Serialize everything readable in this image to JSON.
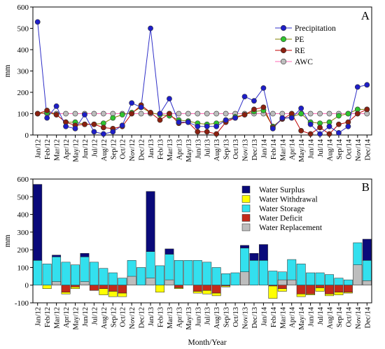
{
  "months": [
    "Jan/12",
    "Feb/12",
    "Mar/12",
    "Apr/12",
    "May/12",
    "Jun/12",
    "Jul/12",
    "Aug/12",
    "Sep/12",
    "Oct/12",
    "Nov/12",
    "Dec/12",
    "Jan/13",
    "Feb/13",
    "Mar/13",
    "Apr/13",
    "May/13",
    "Jun/13",
    "Jul/13",
    "Aug/13",
    "Sep/13",
    "Oct/13",
    "Nov/13",
    "Dec/13",
    "Jan/14",
    "Feb/14",
    "Mar/14",
    "Apr/14",
    "May/14",
    "Jun/14",
    "Jul/14",
    "Aug/14",
    "Sep/14",
    "Oct/14",
    "Nov/14",
    "Dec/14"
  ],
  "xlabel": "Month/Year",
  "chart_data": [
    {
      "type": "line",
      "panel": "A",
      "ylabel": "mm",
      "ylim": [
        0,
        600
      ],
      "yticks": [
        0,
        100,
        200,
        300,
        400,
        500,
        600
      ],
      "legend_position": "top-right",
      "series": [
        {
          "name": "Precipitation",
          "color": "#1e1ec8",
          "line": "#3030c8",
          "values": [
            530,
            80,
            135,
            40,
            30,
            95,
            15,
            5,
            15,
            45,
            150,
            130,
            500,
            100,
            170,
            60,
            60,
            40,
            40,
            40,
            70,
            80,
            180,
            160,
            220,
            30,
            80,
            80,
            125,
            50,
            5,
            40,
            10,
            40,
            225,
            235
          ]
        },
        {
          "name": "PE",
          "color": "#2fc42f",
          "line": "#808000",
          "values": [
            100,
            105,
            95,
            60,
            60,
            50,
            50,
            55,
            80,
            95,
            105,
            130,
            105,
            95,
            90,
            70,
            65,
            55,
            50,
            55,
            70,
            85,
            95,
            110,
            115,
            40,
            75,
            85,
            100,
            60,
            55,
            60,
            90,
            100,
            120,
            120
          ]
        },
        {
          "name": "RE",
          "color": "#8b2010",
          "line": "#c00000",
          "values": [
            100,
            115,
            95,
            60,
            45,
            50,
            50,
            35,
            30,
            40,
            100,
            140,
            105,
            70,
            100,
            55,
            60,
            15,
            15,
            5,
            60,
            80,
            95,
            120,
            130,
            35,
            75,
            100,
            20,
            5,
            35,
            5,
            50,
            60,
            100,
            120
          ]
        },
        {
          "name": "AWC",
          "color": "#bdbdbd",
          "line": "#ff69b4",
          "values": [
            100,
            100,
            100,
            100,
            100,
            100,
            100,
            100,
            100,
            100,
            100,
            100,
            100,
            100,
            100,
            100,
            100,
            100,
            100,
            100,
            100,
            100,
            100,
            100,
            100,
            100,
            100,
            100,
            100,
            100,
            100,
            100,
            100,
            100,
            100,
            100
          ]
        }
      ]
    },
    {
      "type": "bar",
      "panel": "B",
      "ylabel": "mm",
      "ylim": [
        -100,
        600
      ],
      "yticks": [
        -100,
        0,
        100,
        200,
        300,
        400,
        500,
        600
      ],
      "legend_position": "top-right",
      "series": [
        {
          "name": "Water Storage",
          "color": "#33e0ee",
          "values": [
            140,
            120,
            160,
            130,
            115,
            160,
            130,
            95,
            70,
            40,
            140,
            100,
            190,
            110,
            175,
            140,
            140,
            140,
            130,
            100,
            65,
            70,
            210,
            140,
            140,
            80,
            75,
            145,
            120,
            70,
            70,
            60,
            40,
            30,
            240,
            140
          ]
        },
        {
          "name": "Water Surplus",
          "color": "#0a0a7a",
          "values": [
            430,
            0,
            10,
            0,
            0,
            20,
            0,
            0,
            0,
            0,
            0,
            0,
            340,
            0,
            30,
            0,
            0,
            0,
            0,
            0,
            0,
            0,
            15,
            40,
            90,
            0,
            0,
            0,
            0,
            0,
            0,
            0,
            0,
            0,
            0,
            120
          ]
        },
        {
          "name": "Water Replacement",
          "color": "#bdbdbd",
          "values": [
            0,
            0,
            20,
            0,
            0,
            20,
            0,
            0,
            0,
            0,
            50,
            0,
            40,
            0,
            30,
            0,
            0,
            0,
            0,
            0,
            0,
            0,
            75,
            0,
            0,
            0,
            30,
            30,
            0,
            0,
            0,
            0,
            0,
            0,
            115,
            25
          ]
        },
        {
          "name": "Water Deficit",
          "color": "#c42a1a",
          "values": [
            0,
            0,
            0,
            -40,
            -10,
            0,
            -30,
            -20,
            -35,
            -45,
            0,
            0,
            0,
            0,
            0,
            -15,
            0,
            -35,
            -30,
            -45,
            -5,
            0,
            0,
            0,
            0,
            -5,
            -20,
            0,
            -50,
            -50,
            -15,
            -50,
            -40,
            -40,
            0,
            0
          ]
        },
        {
          "name": "Water Withdrawal",
          "color": "#ffff00",
          "values": [
            0,
            -20,
            0,
            -10,
            -10,
            0,
            0,
            -35,
            -30,
            -20,
            0,
            0,
            0,
            -40,
            0,
            -5,
            0,
            -10,
            -20,
            -15,
            -5,
            0,
            0,
            0,
            0,
            -70,
            -15,
            0,
            -15,
            -5,
            -20,
            -10,
            -15,
            -5,
            0,
            0
          ]
        }
      ]
    }
  ],
  "panel_labels": [
    "A",
    "B"
  ]
}
